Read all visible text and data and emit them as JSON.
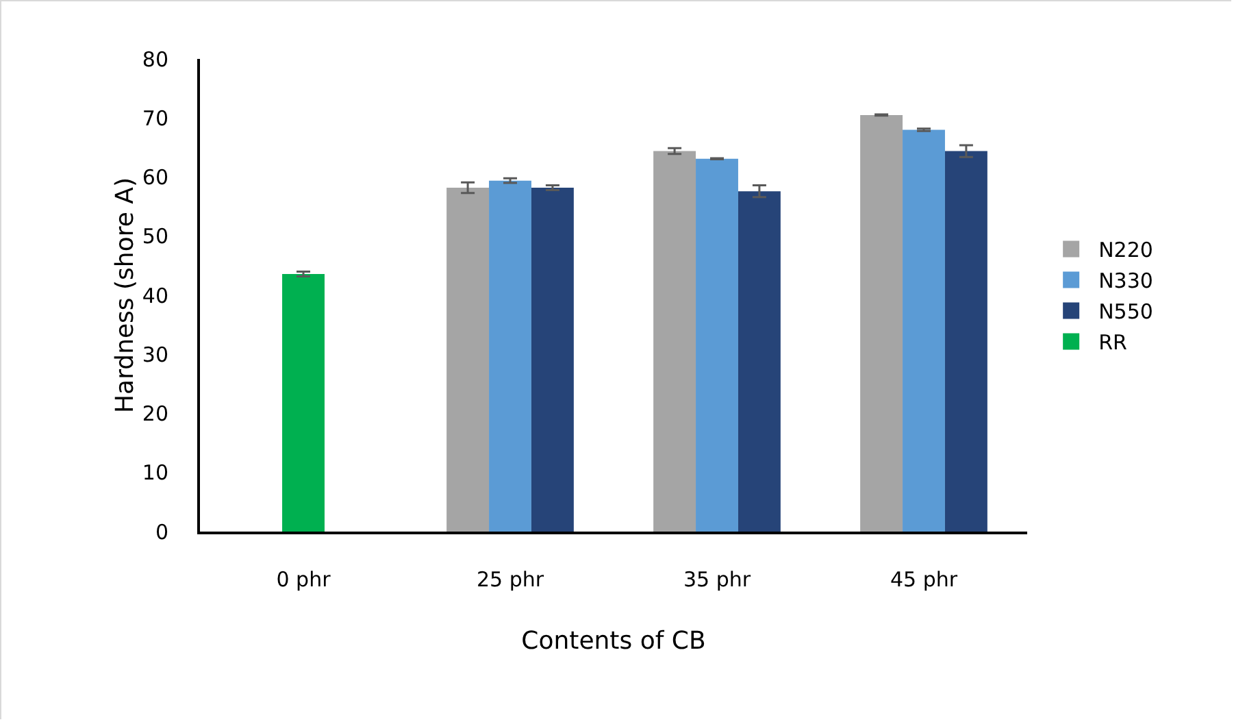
{
  "chart_data": {
    "type": "bar",
    "xlabel": "Contents of CB",
    "ylabel": "Hardness (shore A)",
    "categories": [
      "0 phr",
      "25 phr",
      "35 phr",
      "45 phr"
    ],
    "series": [
      {
        "name": "N220",
        "color": "#a5a5a5",
        "values": [
          null,
          58.2,
          64.4,
          70.5
        ],
        "errors": [
          null,
          0.9,
          0.5,
          0.1
        ]
      },
      {
        "name": "N330",
        "color": "#5b9bd5",
        "values": [
          null,
          59.4,
          63.1,
          68.0
        ],
        "errors": [
          null,
          0.4,
          0.1,
          0.2
        ]
      },
      {
        "name": "N550",
        "color": "#264478",
        "values": [
          null,
          58.2,
          57.6,
          64.4
        ],
        "errors": [
          null,
          0.4,
          1.0,
          1.0
        ]
      },
      {
        "name": "RR",
        "color": "#00b050",
        "values": [
          43.6,
          null,
          null,
          null
        ],
        "errors": [
          0.4,
          null,
          null,
          null
        ]
      }
    ],
    "ylim": [
      0,
      80
    ],
    "yticks": [
      0,
      10,
      20,
      30,
      40,
      50,
      60,
      70,
      80
    ],
    "grid": false,
    "legend": "right"
  }
}
